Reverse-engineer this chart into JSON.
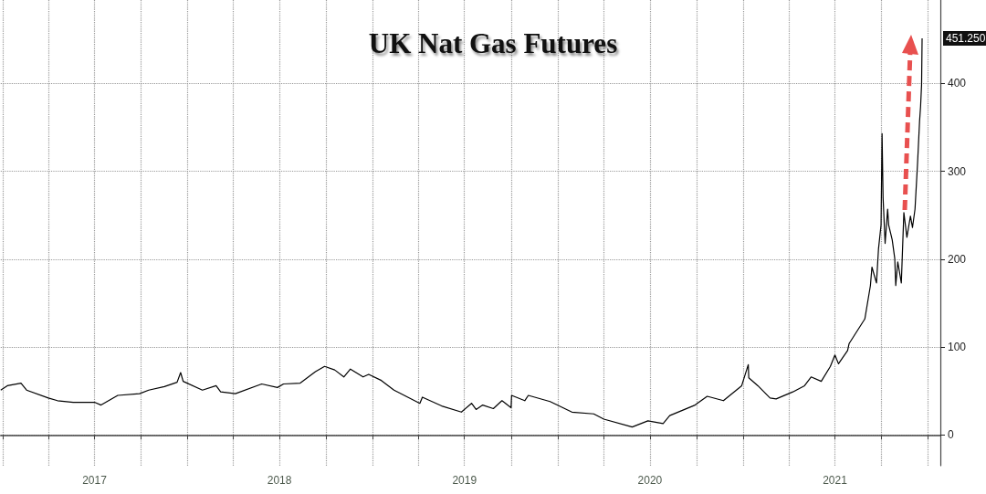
{
  "chart_data": {
    "type": "line",
    "title": "UK Nat Gas Futures",
    "x": [
      "2016-12-28",
      "2017-01-10",
      "2017-02-06",
      "2017-02-17",
      "2017-04-01",
      "2017-04-19",
      "2017-05-20",
      "2017-07-02",
      "2017-07-14",
      "2017-08-16",
      "2017-09-28",
      "2017-10-16",
      "2017-11-16",
      "2017-12-11",
      "2017-12-18",
      "2017-12-23",
      "2018-01-30",
      "2018-02-26",
      "2018-03-07",
      "2018-04-05",
      "2018-05-27",
      "2018-06-27",
      "2018-07-09",
      "2018-08-11",
      "2018-09-10",
      "2018-09-28",
      "2018-10-18",
      "2018-11-05",
      "2018-11-18",
      "2018-12-13",
      "2018-12-24",
      "2019-01-18",
      "2019-02-12",
      "2019-04-04",
      "2019-04-09",
      "2019-05-17",
      "2019-06-25",
      "2019-07-15",
      "2019-07-24",
      "2019-08-06",
      "2019-08-27",
      "2019-09-13",
      "2019-10-01",
      "2019-10-02",
      "2019-10-28",
      "2019-11-04",
      "2019-12-17",
      "2020-01-29",
      "2020-03-12",
      "2020-04-01",
      "2020-05-27",
      "2020-06-27",
      "2020-07-27",
      "2020-08-09",
      "2020-09-28",
      "2020-10-22",
      "2020-11-23",
      "2020-12-29",
      "2021-01-11",
      "2021-01-12",
      "2021-01-30",
      "2021-02-23",
      "2021-03-07",
      "2021-04-09",
      "2021-05-02",
      "2021-05-15",
      "2021-06-04",
      "2021-06-22",
      "2021-07-01",
      "2021-07-08",
      "2021-07-26",
      "2021-07-29",
      "2021-08-29",
      "2021-09-09",
      "2021-09-12",
      "2021-09-21",
      "2021-09-25",
      "2021-09-30",
      "2021-10-02",
      "2021-10-04",
      "2021-10-08",
      "2021-10-13",
      "2021-10-15",
      "2021-10-22",
      "2021-10-27",
      "2021-10-29",
      "2021-11-02",
      "2021-11-09",
      "2021-11-14",
      "2021-11-20",
      "2021-11-27",
      "2021-12-01",
      "2021-12-06",
      "2021-12-11",
      "2021-12-15",
      "2021-12-17",
      "2021-12-19",
      "2021-12-20"
    ],
    "series": [
      {
        "color": "#000000",
        "values": [
          51,
          56,
          59,
          51,
          42,
          39,
          37,
          37,
          34,
          45,
          47,
          51,
          55,
          60,
          71,
          61,
          51,
          56,
          49,
          47,
          58,
          54,
          58,
          59,
          72,
          78,
          74,
          66,
          75,
          66,
          69,
          62,
          51,
          36,
          43,
          33,
          26,
          36,
          29,
          34,
          30,
          39,
          31,
          45,
          39,
          45,
          38,
          26,
          24,
          18,
          9,
          16,
          13,
          22,
          34,
          44,
          39,
          56,
          80,
          65,
          56,
          42,
          41,
          49,
          56,
          66,
          61,
          78,
          91,
          81,
          96,
          104,
          132,
          170,
          191,
          173,
          212,
          239,
          343,
          270,
          218,
          257,
          239,
          222,
          201,
          170,
          197,
          173,
          253,
          225,
          249,
          236,
          257,
          309,
          357,
          374,
          399,
          451.25
        ]
      }
    ],
    "xlim": [
      "2016-12-28",
      "2022-01-25"
    ],
    "xticks": [
      {
        "value": "2017-01-01",
        "label": null
      },
      {
        "value": "2017-04-01",
        "label": null
      },
      {
        "value": "2017-07-01",
        "label": "2017"
      },
      {
        "value": "2017-10-01",
        "label": null
      },
      {
        "value": "2018-01-01",
        "label": null
      },
      {
        "value": "2018-04-01",
        "label": null
      },
      {
        "value": "2018-07-01",
        "label": "2018"
      },
      {
        "value": "2018-10-01",
        "label": null
      },
      {
        "value": "2019-01-01",
        "label": null
      },
      {
        "value": "2019-04-01",
        "label": null
      },
      {
        "value": "2019-07-01",
        "label": "2019"
      },
      {
        "value": "2019-10-01",
        "label": null
      },
      {
        "value": "2020-01-01",
        "label": null
      },
      {
        "value": "2020-04-01",
        "label": null
      },
      {
        "value": "2020-07-01",
        "label": "2020"
      },
      {
        "value": "2020-10-01",
        "label": null
      },
      {
        "value": "2021-01-01",
        "label": null
      },
      {
        "value": "2021-04-01",
        "label": null
      },
      {
        "value": "2021-07-01",
        "label": "2021"
      },
      {
        "value": "2021-10-01",
        "label": null
      },
      {
        "value": "2022-01-01",
        "label": null
      }
    ],
    "ylim": [
      -35,
      495
    ],
    "yticks": [
      0,
      100,
      200,
      300,
      400
    ],
    "annotations": [
      {
        "text": "451.250",
        "x": "2021-12-20",
        "y": 451.25
      }
    ],
    "grid": true,
    "marker": "none",
    "line_style": "solid"
  }
}
